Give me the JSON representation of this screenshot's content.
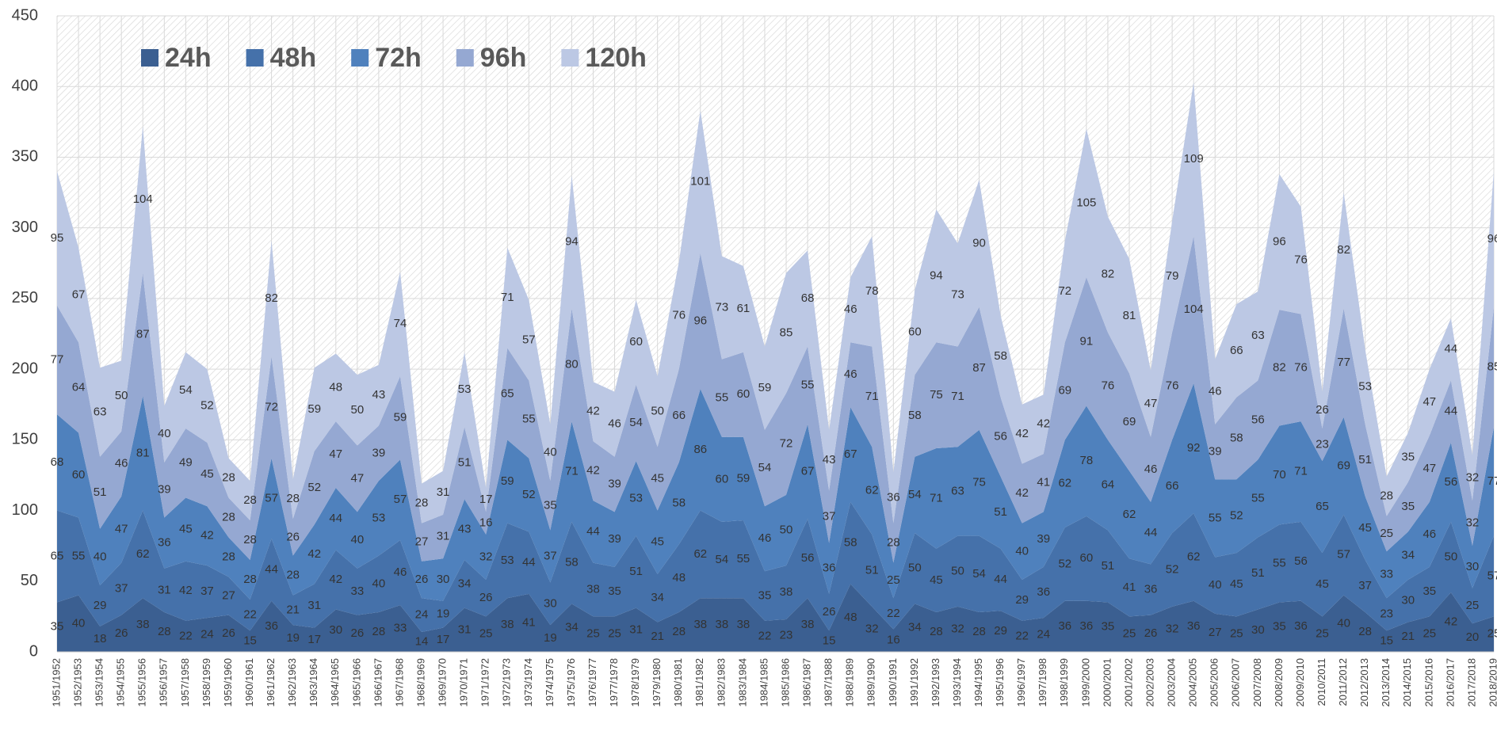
{
  "chart_data": {
    "type": "area",
    "stacked": true,
    "categories": [
      "1951/1952",
      "1952/1953",
      "1953/1954",
      "1954/1955",
      "1955/1956",
      "1956/1957",
      "1957/1958",
      "1958/1959",
      "1959/1960",
      "1960/1961",
      "1961/1962",
      "1962/1963",
      "1963/1964",
      "1964/1965",
      "1965/1966",
      "1966/1967",
      "1967/1968",
      "1968/1969",
      "1969/1970",
      "1970/1971",
      "1971/1972",
      "1972/1973",
      "1973/1974",
      "1974/1975",
      "1975/1976",
      "1976/1977",
      "1977/1978",
      "1978/1979",
      "1979/1980",
      "1980/1981",
      "1981/1982",
      "1982/1983",
      "1983/1984",
      "1984/1985",
      "1985/1986",
      "1986/1987",
      "1987/1988",
      "1988/1989",
      "1989/1990",
      "1990/1991",
      "1991/1992",
      "1992/1993",
      "1993/1994",
      "1994/1995",
      "1995/1996",
      "1996/1997",
      "1997/1998",
      "1998/1999",
      "1999/2000",
      "2000/2001",
      "2001/2002",
      "2002/2003",
      "2003/2004",
      "2004/2005",
      "2005/2006",
      "2006/2007",
      "2007/2008",
      "2008/2009",
      "2009/2010",
      "2010/2011",
      "2011/2012",
      "2012/2013",
      "2013/2014",
      "2014/2015",
      "2015/2016",
      "2016/2017",
      "2017/2018",
      "2018/2019"
    ],
    "series": [
      {
        "name": "24h",
        "color": "#3b5f91",
        "values": [
          35,
          40,
          18,
          26,
          38,
          28,
          22,
          24,
          26,
          15,
          36,
          19,
          17,
          30,
          26,
          28,
          33,
          14,
          17,
          31,
          25,
          38,
          41,
          19,
          34,
          25,
          25,
          31,
          21,
          28,
          38,
          38,
          38,
          22,
          23,
          38,
          15,
          48,
          32,
          16,
          34,
          28,
          32,
          28,
          29,
          22,
          24,
          36,
          36,
          35,
          25,
          26,
          32,
          36,
          27,
          25,
          30,
          35,
          36,
          25,
          40,
          28,
          15,
          21,
          25,
          42,
          20,
          25
        ]
      },
      {
        "name": "48h",
        "color": "#4571aa",
        "values": [
          65,
          55,
          29,
          37,
          62,
          31,
          42,
          37,
          27,
          22,
          44,
          21,
          31,
          42,
          33,
          40,
          46,
          24,
          19,
          34,
          26,
          53,
          44,
          30,
          58,
          38,
          35,
          51,
          34,
          48,
          62,
          54,
          55,
          35,
          38,
          56,
          26,
          58,
          51,
          22,
          50,
          45,
          50,
          54,
          44,
          29,
          36,
          52,
          60,
          51,
          41,
          36,
          52,
          62,
          40,
          45,
          51,
          55,
          56,
          45,
          57,
          37,
          23,
          30,
          35,
          50,
          25,
          57
        ]
      },
      {
        "name": "72h",
        "color": "#4f81bd",
        "values": [
          68,
          60,
          40,
          47,
          81,
          36,
          45,
          42,
          28,
          28,
          57,
          28,
          42,
          44,
          40,
          53,
          57,
          26,
          30,
          43,
          32,
          59,
          52,
          37,
          71,
          44,
          39,
          53,
          45,
          58,
          86,
          60,
          59,
          46,
          50,
          67,
          36,
          67,
          62,
          25,
          54,
          71,
          63,
          75,
          51,
          40,
          39,
          62,
          78,
          64,
          62,
          44,
          66,
          92,
          55,
          52,
          55,
          70,
          71,
          65,
          69,
          45,
          33,
          34,
          46,
          56,
          30,
          77
        ]
      },
      {
        "name": "96h",
        "color": "#95a8d2",
        "values": [
          77,
          64,
          51,
          46,
          87,
          39,
          49,
          45,
          28,
          28,
          72,
          26,
          52,
          47,
          47,
          39,
          59,
          27,
          31,
          51,
          16,
          65,
          55,
          35,
          80,
          42,
          39,
          54,
          45,
          66,
          96,
          55,
          60,
          54,
          72,
          55,
          37,
          46,
          71,
          28,
          58,
          75,
          71,
          87,
          56,
          42,
          41,
          69,
          91,
          76,
          69,
          46,
          76,
          104,
          39,
          58,
          56,
          82,
          76,
          23,
          77,
          51,
          25,
          35,
          47,
          44,
          32,
          85
        ]
      },
      {
        "name": "120h",
        "color": "#bcc8e4",
        "values": [
          95,
          67,
          63,
          50,
          104,
          40,
          54,
          52,
          28,
          28,
          82,
          28,
          59,
          48,
          50,
          43,
          74,
          28,
          31,
          53,
          17,
          71,
          57,
          40,
          94,
          42,
          46,
          60,
          50,
          76,
          101,
          73,
          61,
          59,
          85,
          68,
          43,
          46,
          78,
          36,
          60,
          94,
          73,
          90,
          58,
          42,
          42,
          72,
          105,
          82,
          81,
          47,
          79,
          109,
          46,
          66,
          63,
          96,
          76,
          26,
          82,
          53,
          28,
          35,
          47,
          44,
          32,
          96
        ]
      }
    ],
    "ylim": [
      0,
      450
    ],
    "yticks": [
      0,
      50,
      100,
      150,
      200,
      250,
      300,
      350,
      400,
      450
    ],
    "grid": true,
    "legend": "upper left"
  }
}
